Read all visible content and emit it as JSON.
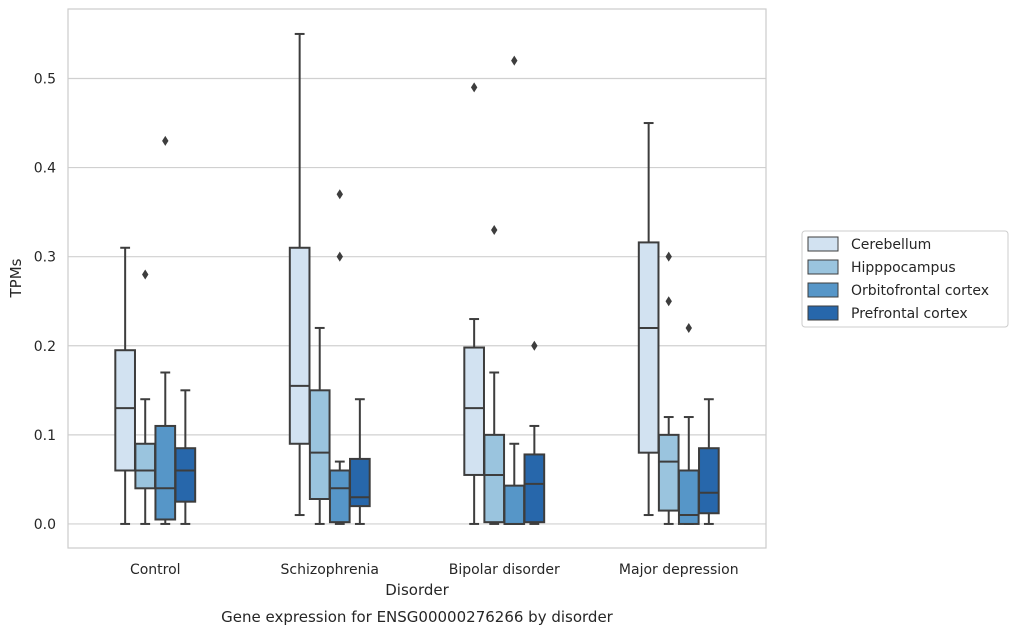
{
  "caption": "Gene expression for ENSG00000276266 by disorder",
  "chart_data": {
    "type": "box",
    "title": "",
    "xlabel": "Disorder",
    "ylabel": "TPMs",
    "ylim": [
      -0.027,
      0.578
    ],
    "yticks": [
      0.0,
      0.1,
      0.2,
      0.3,
      0.4,
      0.5
    ],
    "ytick_labels": [
      "0.0",
      "0.1",
      "0.2",
      "0.3",
      "0.4",
      "0.5"
    ],
    "grid": "horizontal",
    "legend_position": "right",
    "categories": [
      "Control",
      "Schizophrenia",
      "Bipolar disorder",
      "Major depression"
    ],
    "series": [
      {
        "name": "Cerebellum",
        "color": "#d2e2f1",
        "boxes": [
          {
            "whislo": 0.0,
            "q1": 0.06,
            "med": 0.13,
            "q3": 0.195,
            "whishi": 0.31,
            "fliers": []
          },
          {
            "whislo": 0.01,
            "q1": 0.09,
            "med": 0.155,
            "q3": 0.31,
            "whishi": 0.55,
            "fliers": []
          },
          {
            "whislo": 0.0,
            "q1": 0.055,
            "med": 0.13,
            "q3": 0.198,
            "whishi": 0.23,
            "fliers": [
              0.49
            ]
          },
          {
            "whislo": 0.01,
            "q1": 0.08,
            "med": 0.22,
            "q3": 0.316,
            "whishi": 0.45,
            "fliers": []
          }
        ]
      },
      {
        "name": "Hipppocampus",
        "color": "#9ac4de",
        "boxes": [
          {
            "whislo": 0.0,
            "q1": 0.04,
            "med": 0.06,
            "q3": 0.09,
            "whishi": 0.14,
            "fliers": [
              0.28
            ]
          },
          {
            "whislo": 0.0,
            "q1": 0.028,
            "med": 0.08,
            "q3": 0.15,
            "whishi": 0.22,
            "fliers": []
          },
          {
            "whislo": 0.0,
            "q1": 0.002,
            "med": 0.055,
            "q3": 0.1,
            "whishi": 0.17,
            "fliers": [
              0.33
            ]
          },
          {
            "whislo": 0.0,
            "q1": 0.015,
            "med": 0.07,
            "q3": 0.1,
            "whishi": 0.12,
            "fliers": [
              0.25,
              0.3
            ]
          }
        ]
      },
      {
        "name": "Orbitofrontal cortex",
        "color": "#5696c8",
        "boxes": [
          {
            "whislo": 0.0,
            "q1": 0.005,
            "med": 0.04,
            "q3": 0.11,
            "whishi": 0.17,
            "fliers": [
              0.43
            ]
          },
          {
            "whislo": 0.0,
            "q1": 0.002,
            "med": 0.04,
            "q3": 0.06,
            "whishi": 0.07,
            "fliers": [
              0.3,
              0.37
            ]
          },
          {
            "whislo": 0.0,
            "q1": 0.0,
            "med": 0.0,
            "q3": 0.043,
            "whishi": 0.09,
            "fliers": [
              0.52
            ]
          },
          {
            "whislo": 0.0,
            "q1": 0.0,
            "med": 0.01,
            "q3": 0.06,
            "whishi": 0.12,
            "fliers": [
              0.22
            ]
          }
        ]
      },
      {
        "name": "Prefrontal cortex",
        "color": "#2767ab",
        "boxes": [
          {
            "whislo": 0.0,
            "q1": 0.025,
            "med": 0.06,
            "q3": 0.085,
            "whishi": 0.15,
            "fliers": []
          },
          {
            "whislo": 0.0,
            "q1": 0.02,
            "med": 0.03,
            "q3": 0.073,
            "whishi": 0.14,
            "fliers": []
          },
          {
            "whislo": 0.0,
            "q1": 0.002,
            "med": 0.045,
            "q3": 0.078,
            "whishi": 0.11,
            "fliers": [
              0.2
            ]
          },
          {
            "whislo": 0.0,
            "q1": 0.012,
            "med": 0.035,
            "q3": 0.085,
            "whishi": 0.14,
            "fliers": []
          }
        ]
      }
    ]
  }
}
